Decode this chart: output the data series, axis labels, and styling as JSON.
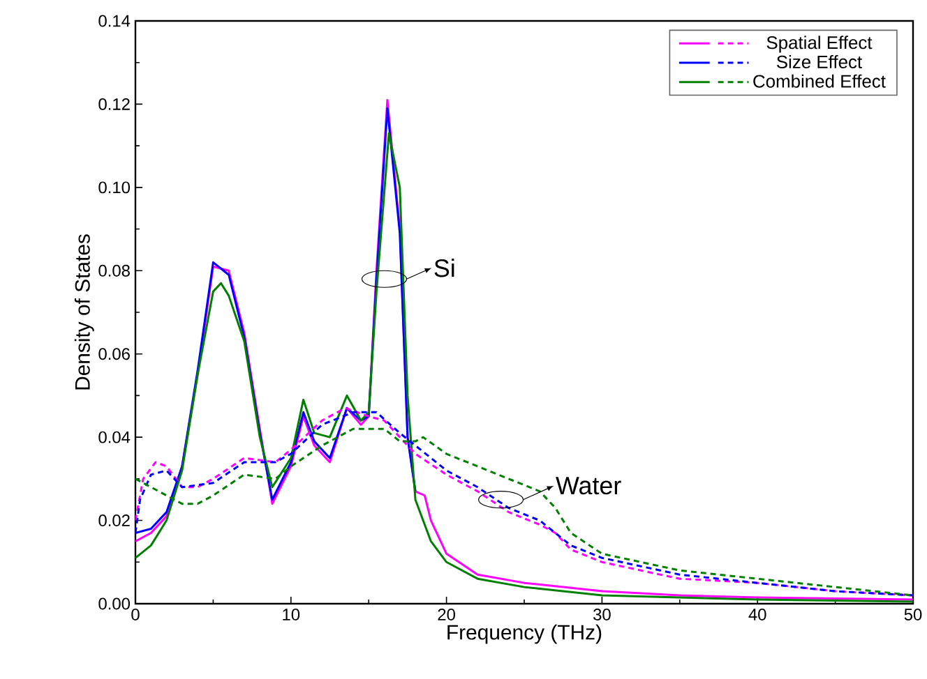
{
  "chart_data": {
    "type": "line",
    "xlabel": "Frequency (THz)",
    "ylabel": "Density of States",
    "xlim": [
      0,
      50
    ],
    "ylim": [
      0,
      0.14
    ],
    "xticks": [
      0,
      10,
      20,
      30,
      40,
      50
    ],
    "yticks": [
      {
        "value": 0,
        "label": "0.00"
      },
      {
        "value": 0.02,
        "label": "0.02"
      },
      {
        "value": 0.04,
        "label": "0.04"
      },
      {
        "value": 0.06,
        "label": "0.06"
      },
      {
        "value": 0.08,
        "label": "0.08"
      },
      {
        "value": 0.1,
        "label": "0.10"
      },
      {
        "value": 0.12,
        "label": "0.12"
      },
      {
        "value": 0.14,
        "label": "0.14"
      }
    ],
    "legend": "top right",
    "annotations": [
      {
        "text": "Si",
        "x": 16,
        "y": 0.078
      },
      {
        "text": "Water",
        "x": 23.5,
        "y": 0.025
      }
    ],
    "series": [
      {
        "name": "Spatial Effect",
        "color": "#ff00ff",
        "line_style": "solid",
        "x": [
          0,
          1,
          2,
          3,
          4,
          5,
          6,
          7,
          8,
          8.8,
          10,
          10.8,
          11.5,
          12.5,
          13.6,
          14.5,
          15,
          15.5,
          16.2,
          17,
          17.5,
          18,
          18.6,
          19,
          20,
          22,
          25,
          30,
          35,
          40,
          50
        ],
        "values": [
          0.015,
          0.017,
          0.021,
          0.033,
          0.055,
          0.081,
          0.08,
          0.065,
          0.042,
          0.024,
          0.033,
          0.045,
          0.038,
          0.034,
          0.047,
          0.043,
          0.045,
          0.08,
          0.121,
          0.09,
          0.04,
          0.027,
          0.026,
          0.02,
          0.012,
          0.007,
          0.005,
          0.003,
          0.002,
          0.0015,
          0.001
        ]
      },
      {
        "name": "Size Effect",
        "color": "#0000ff",
        "line_style": "solid",
        "x": [
          0,
          1,
          2,
          3,
          4,
          5,
          6,
          7,
          8,
          8.8,
          10,
          10.8,
          11.5,
          12.5,
          13.6,
          14.5,
          15,
          15.5,
          16.2,
          17,
          17.5,
          18
        ],
        "values": [
          0.017,
          0.018,
          0.022,
          0.033,
          0.056,
          0.082,
          0.079,
          0.064,
          0.041,
          0.025,
          0.034,
          0.046,
          0.039,
          0.035,
          0.047,
          0.044,
          0.045,
          0.078,
          0.119,
          0.089,
          0.04,
          0.027
        ]
      },
      {
        "name": "Combined Effect",
        "color": "#008000",
        "line_style": "solid",
        "x": [
          0,
          1,
          2,
          3,
          4,
          5,
          5.5,
          6,
          7,
          8,
          8.8,
          10,
          10.8,
          11.5,
          12.5,
          13.6,
          14.5,
          15,
          15.5,
          16.3,
          17,
          17.5,
          18,
          19,
          20,
          22,
          25,
          30,
          40,
          50
        ],
        "values": [
          0.011,
          0.014,
          0.02,
          0.032,
          0.055,
          0.075,
          0.077,
          0.074,
          0.063,
          0.04,
          0.028,
          0.035,
          0.049,
          0.041,
          0.04,
          0.05,
          0.044,
          0.046,
          0.075,
          0.113,
          0.1,
          0.05,
          0.025,
          0.015,
          0.01,
          0.006,
          0.004,
          0.002,
          0.001,
          0.0005
        ]
      },
      {
        "color": "#ff00ff",
        "line_style": "dashed",
        "x": [
          0,
          0.5,
          1.3,
          2,
          3,
          4,
          5,
          7,
          9,
          10,
          12,
          13.5,
          15,
          16,
          17,
          18,
          20,
          22,
          24,
          26,
          27,
          28,
          30,
          35,
          40,
          45,
          50
        ],
        "values": [
          0.02,
          0.03,
          0.034,
          0.033,
          0.028,
          0.028,
          0.03,
          0.035,
          0.034,
          0.037,
          0.044,
          0.047,
          0.045,
          0.044,
          0.04,
          0.036,
          0.031,
          0.027,
          0.022,
          0.019,
          0.017,
          0.013,
          0.01,
          0.006,
          0.005,
          0.003,
          0.002
        ]
      },
      {
        "color": "#0000ff",
        "line_style": "dashed",
        "x": [
          0,
          0.3,
          1,
          2,
          3,
          5,
          7,
          9,
          10,
          12,
          14,
          15.5,
          17,
          18,
          20,
          22,
          24,
          26,
          28,
          30,
          35,
          40,
          45,
          50
        ],
        "values": [
          0.017,
          0.025,
          0.031,
          0.032,
          0.028,
          0.029,
          0.034,
          0.034,
          0.036,
          0.043,
          0.046,
          0.046,
          0.041,
          0.038,
          0.032,
          0.028,
          0.023,
          0.02,
          0.014,
          0.011,
          0.007,
          0.005,
          0.003,
          0.002
        ]
      },
      {
        "color": "#008000",
        "line_style": "dashed",
        "x": [
          0,
          1,
          2,
          3,
          4,
          5,
          7,
          9,
          10,
          12,
          14,
          16,
          17,
          18,
          18.5,
          20,
          22,
          24,
          26,
          27,
          28,
          30,
          35,
          40,
          45,
          50
        ],
        "values": [
          0.03,
          0.028,
          0.026,
          0.024,
          0.024,
          0.026,
          0.031,
          0.03,
          0.033,
          0.038,
          0.042,
          0.042,
          0.039,
          0.039,
          0.04,
          0.036,
          0.033,
          0.03,
          0.027,
          0.023,
          0.017,
          0.012,
          0.008,
          0.006,
          0.004,
          0.002
        ]
      }
    ]
  }
}
